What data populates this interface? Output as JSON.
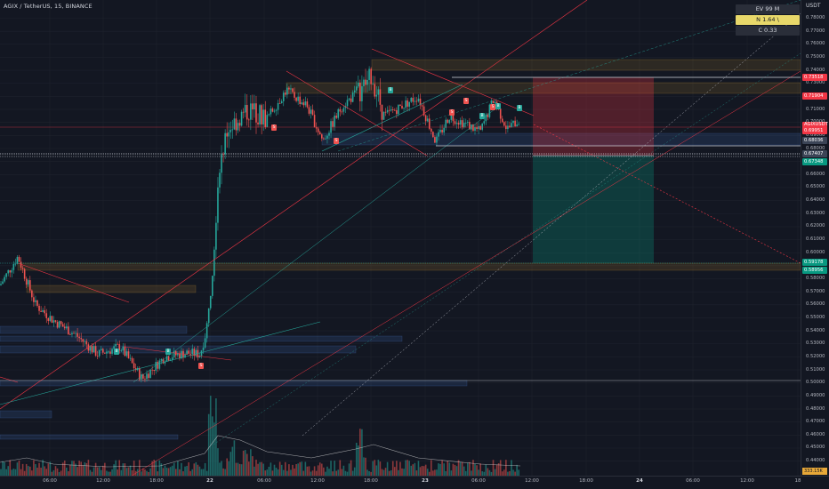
{
  "header": {
    "symbol_title": "AGIX / TetherUS, 15, BINANCE",
    "currency": "USDT"
  },
  "stats": {
    "ev": "EV 99 M",
    "n": "N 1.64 \\",
    "c": "C 0.33"
  },
  "price_axis": {
    "ticks": [
      "0.78000",
      "0.77000",
      "0.76000",
      "0.75000",
      "0.74000",
      "0.73000",
      "0.72000",
      "0.71000",
      "0.70000",
      "0.69000",
      "0.68000",
      "0.67000",
      "0.66000",
      "0.65000",
      "0.64000",
      "0.63000",
      "0.62000",
      "0.61000",
      "0.60000",
      "0.59000",
      "0.58000",
      "0.57000",
      "0.56000",
      "0.55000",
      "0.54000",
      "0.53000",
      "0.52000",
      "0.51000",
      "0.50000",
      "0.49000",
      "0.48000",
      "0.47000",
      "0.46000",
      "0.45000",
      "0.44000"
    ],
    "tags": [
      {
        "text": "0.73518",
        "color": "#f23645"
      },
      {
        "text": "0.71904",
        "color": "#f23645"
      },
      {
        "text": "AGIXUSDT",
        "text2": "0.69951",
        "color": "#f23645"
      },
      {
        "text": "0.68036",
        "color": "#3b4456"
      },
      {
        "text": "0.67407",
        "color": "#3b4456"
      },
      {
        "text": "0.67348",
        "color": "#089981"
      },
      {
        "text": "0.59178",
        "color": "#089981"
      },
      {
        "text": "0.58956",
        "color": "#089981"
      }
    ],
    "countdown": "01:59",
    "volume_tag": "333.15K"
  },
  "time_axis": {
    "labels": [
      "06:00",
      "12:00",
      "18:00",
      "22",
      "06:00",
      "12:00",
      "18:00",
      "23",
      "06:00",
      "12:00",
      "18:00",
      "24",
      "06:00",
      "12:00",
      "18"
    ],
    "day_labels": [
      "22",
      "23",
      "24"
    ]
  },
  "signals": [
    {
      "type": "buy",
      "label": "B"
    },
    {
      "type": "sell",
      "label": "S"
    },
    {
      "type": "buy",
      "label": "B"
    },
    {
      "type": "sell",
      "label": "S"
    },
    {
      "type": "sell",
      "label": "S"
    },
    {
      "type": "buy",
      "label": "B"
    },
    {
      "type": "sell",
      "label": "S"
    },
    {
      "type": "sell",
      "label": "S"
    },
    {
      "type": "buy",
      "label": "B"
    },
    {
      "type": "sell",
      "label": "S"
    },
    {
      "type": "buy",
      "label": "B"
    },
    {
      "type": "buy",
      "label": "B"
    }
  ],
  "colors": {
    "up": "#26a69a",
    "down": "#ef5350",
    "background": "#131722",
    "grid": "#1e222d"
  }
}
